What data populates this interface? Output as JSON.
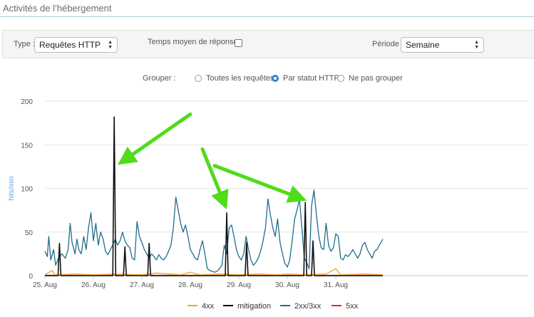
{
  "page": {
    "title": "Activités de l’hébergement"
  },
  "filters": {
    "type_label": "Type :",
    "type_value": "Requêtes HTTP",
    "avg_label": "Temps moyen de réponse :",
    "avg_checked": false,
    "period_label": "Période :",
    "period_value": "Semaine"
  },
  "grouping": {
    "label": "Grouper :",
    "options": [
      {
        "label": "Toutes les requêtes",
        "checked": false
      },
      {
        "label": "Par statut HTTP",
        "checked": true
      },
      {
        "label": "Ne pas grouper",
        "checked": false
      }
    ]
  },
  "colors": {
    "4xx": "#f0a52a",
    "mitigation": "#111111",
    "2xx3xx": "#1f6e8c",
    "5xx": "#d9302c",
    "grid": "#e6e6e6",
    "arrow": "#4fdc1a"
  },
  "chart_data": {
    "type": "line",
    "title": "",
    "xlabel": "",
    "ylabel": "hits/min",
    "ylim": [
      0,
      200
    ],
    "yticks": [
      0,
      50,
      100,
      150,
      200
    ],
    "x_ticks": [
      "25. Aug",
      "26. Aug",
      "27. Aug",
      "28. Aug",
      "29. Aug",
      "30. Aug",
      "31. Aug"
    ],
    "grid": "horizontal",
    "legend_position": "bottom",
    "series": [
      {
        "name": "4xx",
        "color": "#f0a52a",
        "points": [
          [
            0.0,
            1
          ],
          [
            0.15,
            6
          ],
          [
            0.2,
            1
          ],
          [
            0.6,
            2
          ],
          [
            1.0,
            1
          ],
          [
            1.4,
            2
          ],
          [
            2.0,
            1
          ],
          [
            2.3,
            3
          ],
          [
            2.8,
            1
          ],
          [
            3.0,
            4
          ],
          [
            3.2,
            1
          ],
          [
            3.6,
            2
          ],
          [
            4.0,
            1
          ],
          [
            4.4,
            2
          ],
          [
            4.8,
            1
          ],
          [
            5.0,
            2
          ],
          [
            5.4,
            1
          ],
          [
            5.8,
            2
          ],
          [
            6.0,
            8
          ],
          [
            6.1,
            1
          ],
          [
            6.6,
            2
          ],
          [
            6.97,
            1
          ]
        ]
      },
      {
        "name": "mitigation",
        "color": "#111111",
        "points": [
          [
            0.0,
            0
          ],
          [
            0.27,
            0
          ],
          [
            0.3,
            37
          ],
          [
            0.33,
            0
          ],
          [
            1.4,
            0
          ],
          [
            1.43,
            182
          ],
          [
            1.46,
            0
          ],
          [
            1.62,
            0
          ],
          [
            1.65,
            33
          ],
          [
            1.68,
            0
          ],
          [
            2.12,
            0
          ],
          [
            2.15,
            37
          ],
          [
            2.18,
            0
          ],
          [
            3.72,
            0
          ],
          [
            3.75,
            72
          ],
          [
            3.78,
            0
          ],
          [
            4.13,
            0
          ],
          [
            4.16,
            38
          ],
          [
            4.19,
            0
          ],
          [
            5.34,
            0
          ],
          [
            5.37,
            84
          ],
          [
            5.4,
            0
          ],
          [
            5.5,
            0
          ],
          [
            5.53,
            40
          ],
          [
            5.56,
            0
          ],
          [
            6.97,
            0
          ]
        ]
      },
      {
        "name": "2xx/3xx",
        "color": "#1f6e8c",
        "points": [
          [
            0.0,
            28
          ],
          [
            0.05,
            22
          ],
          [
            0.08,
            45
          ],
          [
            0.12,
            18
          ],
          [
            0.18,
            30
          ],
          [
            0.22,
            12
          ],
          [
            0.28,
            20
          ],
          [
            0.35,
            25
          ],
          [
            0.42,
            20
          ],
          [
            0.48,
            30
          ],
          [
            0.52,
            60
          ],
          [
            0.56,
            38
          ],
          [
            0.62,
            25
          ],
          [
            0.66,
            42
          ],
          [
            0.7,
            30
          ],
          [
            0.75,
            25
          ],
          [
            0.8,
            45
          ],
          [
            0.85,
            30
          ],
          [
            0.9,
            55
          ],
          [
            0.95,
            72
          ],
          [
            1.0,
            40
          ],
          [
            1.05,
            60
          ],
          [
            1.1,
            35
          ],
          [
            1.15,
            50
          ],
          [
            1.2,
            42
          ],
          [
            1.25,
            28
          ],
          [
            1.3,
            24
          ],
          [
            1.35,
            30
          ],
          [
            1.4,
            35
          ],
          [
            1.45,
            42
          ],
          [
            1.5,
            35
          ],
          [
            1.55,
            40
          ],
          [
            1.6,
            50
          ],
          [
            1.65,
            40
          ],
          [
            1.7,
            35
          ],
          [
            1.75,
            32
          ],
          [
            1.8,
            20
          ],
          [
            1.85,
            18
          ],
          [
            1.9,
            62
          ],
          [
            1.95,
            45
          ],
          [
            2.0,
            38
          ],
          [
            2.05,
            30
          ],
          [
            2.1,
            25
          ],
          [
            2.15,
            20
          ],
          [
            2.2,
            25
          ],
          [
            2.25,
            22
          ],
          [
            2.3,
            18
          ],
          [
            2.35,
            24
          ],
          [
            2.4,
            20
          ],
          [
            2.45,
            18
          ],
          [
            2.5,
            22
          ],
          [
            2.55,
            28
          ],
          [
            2.6,
            35
          ],
          [
            2.65,
            55
          ],
          [
            2.7,
            90
          ],
          [
            2.75,
            75
          ],
          [
            2.8,
            60
          ],
          [
            2.85,
            50
          ],
          [
            2.9,
            58
          ],
          [
            2.95,
            45
          ],
          [
            3.0,
            30
          ],
          [
            3.05,
            25
          ],
          [
            3.1,
            20
          ],
          [
            3.15,
            18
          ],
          [
            3.2,
            30
          ],
          [
            3.25,
            40
          ],
          [
            3.3,
            25
          ],
          [
            3.35,
            8
          ],
          [
            3.4,
            6
          ],
          [
            3.45,
            5
          ],
          [
            3.5,
            4
          ],
          [
            3.55,
            5
          ],
          [
            3.6,
            8
          ],
          [
            3.65,
            12
          ],
          [
            3.7,
            35
          ],
          [
            3.75,
            25
          ],
          [
            3.8,
            55
          ],
          [
            3.85,
            58
          ],
          [
            3.9,
            45
          ],
          [
            3.95,
            30
          ],
          [
            4.0,
            22
          ],
          [
            4.05,
            18
          ],
          [
            4.1,
            25
          ],
          [
            4.15,
            45
          ],
          [
            4.2,
            30
          ],
          [
            4.25,
            18
          ],
          [
            4.3,
            12
          ],
          [
            4.35,
            15
          ],
          [
            4.4,
            20
          ],
          [
            4.45,
            28
          ],
          [
            4.5,
            40
          ],
          [
            4.55,
            55
          ],
          [
            4.6,
            88
          ],
          [
            4.65,
            70
          ],
          [
            4.7,
            55
          ],
          [
            4.75,
            45
          ],
          [
            4.8,
            65
          ],
          [
            4.85,
            38
          ],
          [
            4.9,
            25
          ],
          [
            4.95,
            14
          ],
          [
            5.0,
            10
          ],
          [
            5.05,
            18
          ],
          [
            5.1,
            40
          ],
          [
            5.15,
            65
          ],
          [
            5.2,
            75
          ],
          [
            5.25,
            88
          ],
          [
            5.3,
            55
          ],
          [
            5.35,
            20
          ],
          [
            5.4,
            15
          ],
          [
            5.45,
            8
          ],
          [
            5.5,
            80
          ],
          [
            5.55,
            98
          ],
          [
            5.6,
            70
          ],
          [
            5.65,
            45
          ],
          [
            5.7,
            32
          ],
          [
            5.75,
            30
          ],
          [
            5.8,
            60
          ],
          [
            5.85,
            35
          ],
          [
            5.9,
            28
          ],
          [
            5.95,
            32
          ],
          [
            6.0,
            48
          ],
          [
            6.05,
            45
          ],
          [
            6.1,
            20
          ],
          [
            6.15,
            18
          ],
          [
            6.2,
            24
          ],
          [
            6.25,
            22
          ],
          [
            6.3,
            25
          ],
          [
            6.35,
            30
          ],
          [
            6.4,
            25
          ],
          [
            6.45,
            20
          ],
          [
            6.5,
            25
          ],
          [
            6.55,
            35
          ],
          [
            6.6,
            38
          ],
          [
            6.65,
            30
          ],
          [
            6.7,
            25
          ],
          [
            6.75,
            20
          ],
          [
            6.8,
            28
          ],
          [
            6.85,
            30
          ],
          [
            6.9,
            35
          ],
          [
            6.97,
            42
          ]
        ]
      },
      {
        "name": "5xx",
        "color": "#d9302c",
        "points": [
          [
            0.0,
            0.5
          ],
          [
            6.97,
            0.5
          ]
        ]
      }
    ]
  },
  "arrows": [
    {
      "from": [
        3.0,
        185
      ],
      "to": [
        1.5,
        127
      ]
    },
    {
      "from": [
        3.25,
        145
      ],
      "to": [
        3.75,
        76
      ]
    },
    {
      "from": [
        3.5,
        126
      ],
      "to": [
        5.4,
        86
      ]
    }
  ]
}
